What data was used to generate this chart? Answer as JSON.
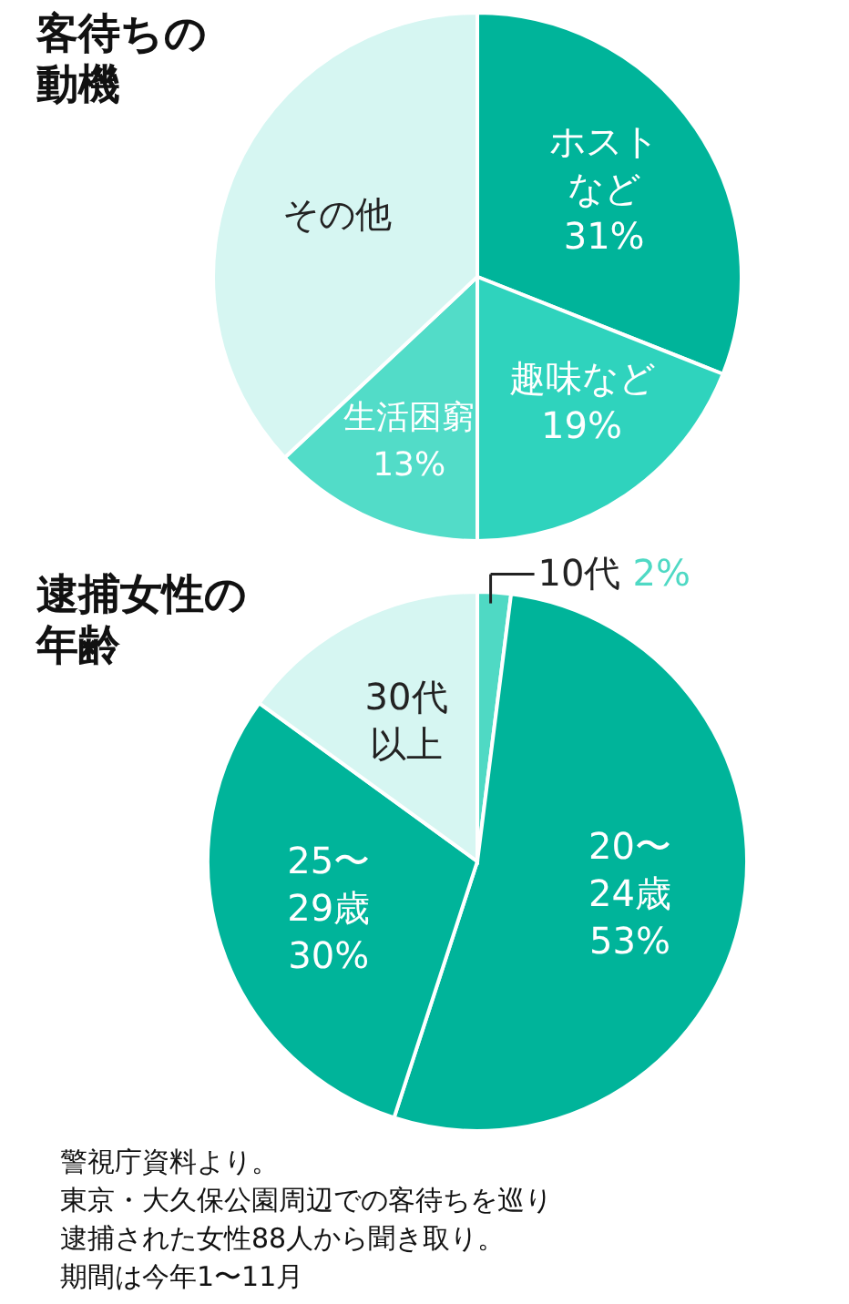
{
  "chart_data": [
    {
      "type": "pie",
      "title": "客待ちの動機",
      "categories": [
        "ホストなど",
        "趣味など",
        "生活困窮",
        "その他"
      ],
      "values": [
        31,
        19,
        13,
        37
      ],
      "value_labels": [
        "31%",
        "19%",
        "13%",
        null
      ],
      "colors": [
        "#00b49a",
        "#2fd3bd",
        "#52dcc8",
        "#d6f6f2"
      ],
      "legend": false
    },
    {
      "type": "pie",
      "title": "逮捕女性の年齢",
      "categories": [
        "10代",
        "20〜24歳",
        "25〜29歳",
        "30代以上"
      ],
      "values": [
        2,
        53,
        30,
        15
      ],
      "value_labels": [
        "2%",
        "53%",
        "30%",
        null
      ],
      "colors": [
        "#4fd9c4",
        "#00b49a",
        "#00b49a",
        "#d6f6f2"
      ],
      "legend": false,
      "annotations": [
        "警視庁資料より。",
        "東京・大久保公園周辺での客待ちを巡り",
        "逮捕された女性88人から聞き取り。",
        "期間は今年1〜11月"
      ]
    }
  ]
}
